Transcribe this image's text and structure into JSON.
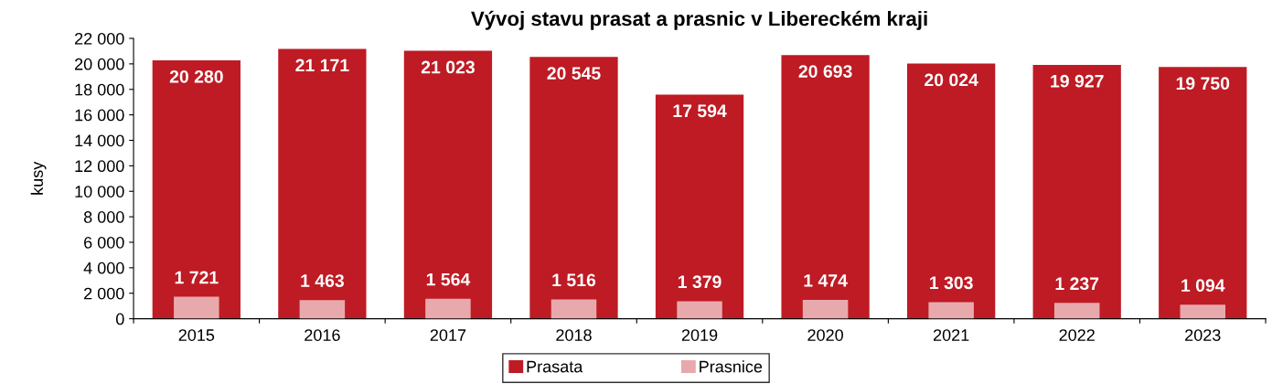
{
  "chart_data": {
    "type": "bar",
    "title": "Vývoj stavu prasat a prasnic v Libereckém kraji",
    "ylabel": "kusy",
    "categories": [
      "2015",
      "2016",
      "2017",
      "2018",
      "2019",
      "2020",
      "2021",
      "2022",
      "2023"
    ],
    "series": [
      {
        "name": "Prasata",
        "color": "#be1b24",
        "values": [
          20280,
          21171,
          21023,
          20545,
          17594,
          20693,
          20024,
          19927,
          19750
        ],
        "value_labels": [
          "20 280",
          "21 171",
          "21 023",
          "20 545",
          "17 594",
          "20 693",
          "20 024",
          "19 927",
          "19 750"
        ]
      },
      {
        "name": "Prasnice",
        "color": "#e8a9ad",
        "values": [
          1721,
          1463,
          1564,
          1516,
          1379,
          1474,
          1303,
          1237,
          1094
        ],
        "value_labels": [
          "1 721",
          "1 463",
          "1 564",
          "1 516",
          "1 379",
          "1 474",
          "1 303",
          "1 237",
          "1 094"
        ]
      }
    ],
    "ylim": [
      0,
      22000
    ],
    "yticks": [
      {
        "value": 0,
        "label": "0"
      },
      {
        "value": 2000,
        "label": "2 000"
      },
      {
        "value": 4000,
        "label": "4 000"
      },
      {
        "value": 6000,
        "label": "6 000"
      },
      {
        "value": 8000,
        "label": "8 000"
      },
      {
        "value": 10000,
        "label": "10 000"
      },
      {
        "value": 12000,
        "label": "12 000"
      },
      {
        "value": 14000,
        "label": "14 000"
      },
      {
        "value": 16000,
        "label": "16 000"
      },
      {
        "value": 18000,
        "label": "18 000"
      },
      {
        "value": 20000,
        "label": "20 000"
      },
      {
        "value": 22000,
        "label": "22 000"
      }
    ],
    "legend": "bottom",
    "grid": false
  }
}
